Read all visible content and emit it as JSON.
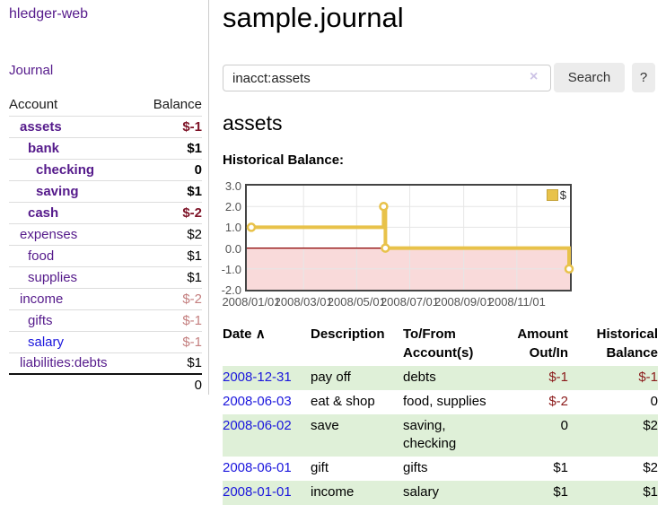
{
  "app": {
    "brand": "hledger-web"
  },
  "sidebar": {
    "journal_link": "Journal",
    "header": {
      "account": "Account",
      "balance": "Balance"
    },
    "accounts": [
      {
        "name": "assets",
        "balance": "$-1"
      },
      {
        "name": "bank",
        "balance": "$1"
      },
      {
        "name": "checking",
        "balance": "0"
      },
      {
        "name": "saving",
        "balance": "$1"
      },
      {
        "name": "cash",
        "balance": "$-2"
      },
      {
        "name": "expenses",
        "balance": "$2"
      },
      {
        "name": "food",
        "balance": "$1"
      },
      {
        "name": "supplies",
        "balance": "$1"
      },
      {
        "name": "income",
        "balance": "$-2"
      },
      {
        "name": "gifts",
        "balance": "$-1"
      },
      {
        "name": "salary",
        "balance": "$-1"
      },
      {
        "name": "liabilities:debts",
        "balance": "$1"
      }
    ],
    "total": "0"
  },
  "main": {
    "title": "sample.journal",
    "account_heading": "assets",
    "chart_title": "Historical Balance:"
  },
  "search": {
    "value": "inacct:assets",
    "clear_icon": "×",
    "button_label": "Search",
    "help_label": "?"
  },
  "register": {
    "header": {
      "date": "Date",
      "sort_indicator": "∧",
      "description": "Description",
      "account_line1": "To/From",
      "account_line2": "Account(s)",
      "amount_line1": "Amount",
      "amount_line2": "Out/In",
      "balance_line1": "Historical",
      "balance_line2": "Balance"
    },
    "rows": [
      {
        "date": "2008-12-31",
        "description": "pay off",
        "accounts": "debts",
        "amount": "$-1",
        "balance": "$-1"
      },
      {
        "date": "2008-06-03",
        "description": "eat & shop",
        "accounts": "food, supplies",
        "amount": "$-2",
        "balance": "0"
      },
      {
        "date": "2008-06-02",
        "description": "save",
        "accounts": "saving, checking",
        "amount": "0",
        "balance": "$2"
      },
      {
        "date": "2008-06-01",
        "description": "gift",
        "accounts": "gifts",
        "amount": "$1",
        "balance": "$2"
      },
      {
        "date": "2008-01-01",
        "description": "income",
        "accounts": "salary",
        "amount": "$1",
        "balance": "$1"
      }
    ]
  },
  "chart_data": {
    "type": "line",
    "title": "Historical Balance:",
    "step": true,
    "series": [
      {
        "name": "$",
        "color": "#e8c24a",
        "points": [
          {
            "date": "2008-01-01",
            "value": 1
          },
          {
            "date": "2008-06-01",
            "value": 2
          },
          {
            "date": "2008-06-03",
            "value": 0
          },
          {
            "date": "2008-12-31",
            "value": -1
          }
        ]
      }
    ],
    "ylim": [
      -2,
      3
    ],
    "yticks": [
      "3.0",
      "2.0",
      "1.0",
      "0.0",
      "-1.0",
      "-2.0"
    ],
    "xticks": [
      "2008/01/01",
      "2008/03/01",
      "2008/05/01",
      "2008/07/01",
      "2008/09/01",
      "2008/11/01"
    ],
    "legend": {
      "label": "$",
      "position": "top-right"
    },
    "grid": true,
    "negative_region_fill": "#f9dada",
    "zero_line_color": "#8b0000"
  },
  "colors": {
    "brand_purple": "#551a8b",
    "link_blue": "#1b16dd",
    "negative_strong": "#7d1226",
    "negative_soft": "#c47f7f",
    "table_negative": "#8b1a1a",
    "row_green": "#dff0d8",
    "chart_line_gold": "#e8c24a",
    "chart_negative_region": "#f9dada",
    "chart_zero_line": "#8b0000"
  }
}
